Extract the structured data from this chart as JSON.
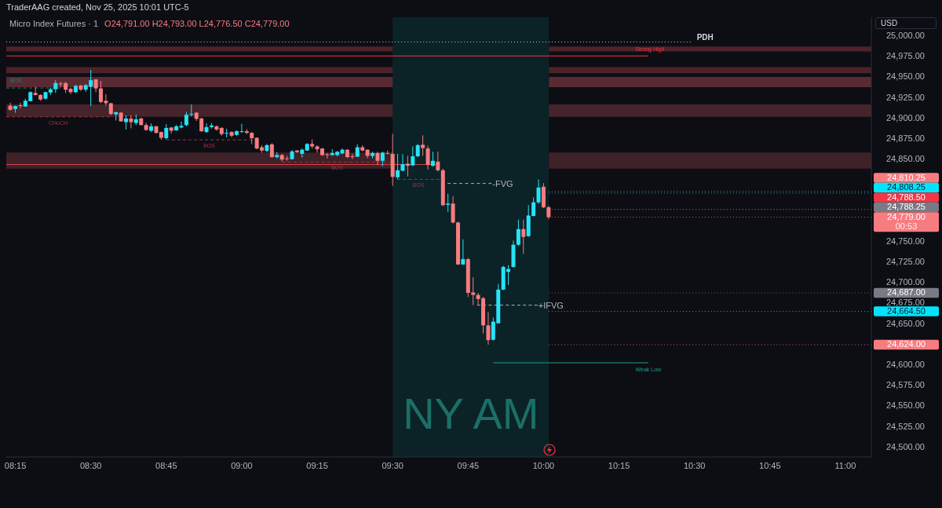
{
  "chart_data": {
    "type": "candlestick",
    "title": "Micro Index Futures · 1",
    "subtitle": "O24,791.00 H24,793.00 L24,776.50 C24,779.00",
    "annotations": [
      "TraderAAG created, Nov 25, 2025 10:01 UTC-5",
      "USD"
    ],
    "x": [
      8.2333,
      8.25,
      8.2667,
      8.2833,
      8.3,
      8.3167,
      8.3333,
      8.35,
      8.3667,
      8.3833,
      8.4,
      8.4167,
      8.4333,
      8.45,
      8.4667,
      8.4833,
      8.5,
      8.5167,
      8.5333,
      8.55,
      8.5667,
      8.5833,
      8.6,
      8.6167,
      8.6333,
      8.65,
      8.6667,
      8.6833,
      8.7,
      8.7167,
      8.7333,
      8.75,
      8.7667,
      8.7833,
      8.8,
      8.8167,
      8.8333,
      8.85,
      8.8667,
      8.8833,
      8.9,
      8.9167,
      8.9333,
      8.95,
      8.9667,
      8.9833,
      9,
      9.0167,
      9.0333,
      9.05,
      9.0667,
      9.0833,
      9.1,
      9.1167,
      9.1333,
      9.15,
      9.1667,
      9.1833,
      9.2,
      9.2167,
      9.2333,
      9.25,
      9.2667,
      9.2833,
      9.3,
      9.3167,
      9.3333,
      9.35,
      9.3667,
      9.3833,
      9.4,
      9.4167,
      9.4333,
      9.45,
      9.4667,
      9.4833,
      9.5,
      9.5167,
      9.5333,
      9.55,
      9.5667,
      9.5833,
      9.6,
      9.6167,
      9.6333,
      9.65,
      9.6667,
      9.6833,
      9.7,
      9.7167,
      9.7333,
      9.75,
      9.7667,
      9.7833,
      9.8,
      9.8167,
      9.8333,
      9.85,
      9.8667,
      9.8833,
      9.9,
      9.9167,
      9.9333,
      9.95,
      9.9667,
      9.9833,
      10,
      10.0167
    ],
    "ohlc": [
      [
        24914.5,
        24918,
        24908.5,
        24909.5
      ],
      [
        24910.5,
        24914.5,
        24906,
        24914
      ],
      [
        24915,
        24918,
        24911,
        24914.5
      ],
      [
        24913.5,
        24923,
        24913.5,
        24920.5
      ],
      [
        24920,
        24932,
        24919.5,
        24931
      ],
      [
        24930,
        24937.5,
        24927,
        24927.5
      ],
      [
        24927.5,
        24928.5,
        24920.5,
        24922
      ],
      [
        24923,
        24931.5,
        24922,
        24931
      ],
      [
        24930.5,
        24936.5,
        24927.5,
        24934.5
      ],
      [
        24934.5,
        24945.5,
        24930,
        24942
      ],
      [
        24941.5,
        24943.5,
        24937,
        24941
      ],
      [
        24942,
        24943.5,
        24930,
        24934
      ],
      [
        24935,
        24936.5,
        24928.5,
        24931
      ],
      [
        24931,
        24940,
        24930,
        24938.5
      ],
      [
        24939,
        24940,
        24932.5,
        24934
      ],
      [
        24934,
        24941,
        24931.5,
        24939.5
      ],
      [
        24937.5,
        24958,
        24914,
        24945.5
      ],
      [
        24946.5,
        24946.5,
        24931,
        24935.5
      ],
      [
        24935.5,
        24944.5,
        24917.5,
        24919
      ],
      [
        24920.5,
        24928.5,
        24914.5,
        24917.5
      ],
      [
        24917.5,
        24918,
        24903,
        24904.5
      ],
      [
        24904,
        24907.5,
        24896.5,
        24906.5
      ],
      [
        24906,
        24907,
        24895,
        24895.5
      ],
      [
        24894.5,
        24903,
        24885.5,
        24899
      ],
      [
        24899,
        24903,
        24887,
        24894.5
      ],
      [
        24893.5,
        24903.5,
        24891,
        24898
      ],
      [
        24899,
        24900,
        24890.5,
        24891
      ],
      [
        24891,
        24893.5,
        24884,
        24885
      ],
      [
        24884,
        24893,
        24882.5,
        24889.5
      ],
      [
        24889.5,
        24890,
        24880.5,
        24881.5
      ],
      [
        24882.5,
        24883,
        24873,
        24875.5
      ],
      [
        24875,
        24892,
        24873.5,
        24887.5
      ],
      [
        24888,
        24888.5,
        24880.5,
        24884
      ],
      [
        24884.5,
        24891,
        24884,
        24889.5
      ],
      [
        24888,
        24895,
        24887,
        24890
      ],
      [
        24891,
        24907,
        24889.5,
        24903.5
      ],
      [
        24904,
        24916,
        24901.5,
        24904.5
      ],
      [
        24906,
        24906.5,
        24896,
        24898.5
      ],
      [
        24899,
        24900,
        24882.5,
        24883.5
      ],
      [
        24882.5,
        24893,
        24881.5,
        24888.5
      ],
      [
        24888.5,
        24893.5,
        24886.5,
        24890.5
      ],
      [
        24889.5,
        24890.5,
        24884,
        24885.5
      ],
      [
        24887.5,
        24888.5,
        24878,
        24880
      ],
      [
        24881,
        24886.5,
        24876,
        24881.5
      ],
      [
        24882.5,
        24883.5,
        24876,
        24878
      ],
      [
        24879,
        24884.5,
        24878,
        24883.5
      ],
      [
        24883,
        24892.5,
        24881.5,
        24883.5
      ],
      [
        24883.5,
        24886,
        24880,
        24881.5
      ],
      [
        24881.5,
        24882.5,
        24868,
        24875
      ],
      [
        24875.5,
        24876,
        24861.5,
        24862.5
      ],
      [
        24864,
        24866.5,
        24857.5,
        24860
      ],
      [
        24859.5,
        24868,
        24858,
        24866.5
      ],
      [
        24867.5,
        24869,
        24851.5,
        24852
      ],
      [
        24852,
        24858,
        24850.5,
        24854.5
      ],
      [
        24854.5,
        24856,
        24846.5,
        24849
      ],
      [
        24850.5,
        24853.5,
        24847.5,
        24850
      ],
      [
        24849.5,
        24860.5,
        24849,
        24859
      ],
      [
        24860,
        24860.5,
        24857,
        24858
      ],
      [
        24856,
        24862.5,
        24851.5,
        24861
      ],
      [
        24860,
        24869,
        24859.5,
        24868
      ],
      [
        24868,
        24873.5,
        24862.5,
        24865
      ],
      [
        24865,
        24866.5,
        24857.5,
        24861.5
      ],
      [
        24862.5,
        24863,
        24853.5,
        24854.5
      ],
      [
        24855.5,
        24857,
        24850.5,
        24855
      ],
      [
        24854.5,
        24861.5,
        24853.5,
        24857
      ],
      [
        24854.5,
        24859.5,
        24853,
        24858.5
      ],
      [
        24856.5,
        24862.5,
        24855.5,
        24861
      ],
      [
        24861,
        24861.5,
        24851,
        24852
      ],
      [
        24853,
        24856,
        24849.5,
        24852.5
      ],
      [
        24852.5,
        24867.5,
        24852,
        24864
      ],
      [
        24864,
        24866.5,
        24859,
        24860
      ],
      [
        24861,
        24861.5,
        24850.5,
        24853.5
      ],
      [
        24853.5,
        24858.5,
        24850.5,
        24857
      ],
      [
        24857,
        24858.5,
        24842.5,
        24847.5
      ],
      [
        24847.5,
        24858.5,
        24841,
        24857.5
      ],
      [
        24857,
        24860,
        24855.5,
        24856.5
      ],
      [
        24856,
        24880.5,
        24817,
        24828
      ],
      [
        24827.5,
        24856,
        24825,
        24836
      ],
      [
        24835.5,
        24855.5,
        24834.5,
        24843.5
      ],
      [
        24844,
        24853.5,
        24828.5,
        24841.5
      ],
      [
        24842,
        24865,
        24841,
        24853
      ],
      [
        24853,
        24868,
        24852,
        24866.5
      ],
      [
        24867,
        24878.5,
        24853.5,
        24863
      ],
      [
        24862.5,
        24866,
        24837,
        24842.5
      ],
      [
        24841.5,
        24858.5,
        24840.5,
        24847.5
      ],
      [
        24846.5,
        24858.5,
        24834.5,
        24836
      ],
      [
        24836,
        24838,
        24792.5,
        24793.5
      ],
      [
        24794,
        24807.5,
        24785.5,
        24795.5
      ],
      [
        24795.5,
        24804.5,
        24771.5,
        24772.5
      ],
      [
        24772.5,
        24773.5,
        24721,
        24721.5
      ],
      [
        24721.5,
        24752,
        24721,
        24728
      ],
      [
        24728,
        24729.5,
        24682,
        24687
      ],
      [
        24687.5,
        24706,
        24672,
        24684.5
      ],
      [
        24684.5,
        24687,
        24672,
        24679.5
      ],
      [
        24680.5,
        24682,
        24637.5,
        24647.5
      ],
      [
        24647.5,
        24663.5,
        24624,
        24629.5
      ],
      [
        24630,
        24657,
        24629,
        24652
      ],
      [
        24650,
        24698,
        24649.5,
        24691
      ],
      [
        24691,
        24720,
        24690,
        24718.5
      ],
      [
        24712.5,
        24720.5,
        24696.5,
        24716
      ],
      [
        24718.5,
        24750.5,
        24717.5,
        24745.5
      ],
      [
        24745.5,
        24776,
        24744,
        24764.5
      ],
      [
        24764.5,
        24776,
        24734.5,
        24755
      ],
      [
        24756,
        24793.5,
        24755,
        24781
      ],
      [
        24780.5,
        24803,
        24780,
        24797
      ],
      [
        24797,
        24825,
        24795,
        24815
      ],
      [
        24816,
        24820.5,
        24790,
        24791
      ],
      [
        24791,
        24793,
        24776.5,
        24779
      ]
    ],
    "colors": [
      "#f77c80",
      "#26e3f5",
      "#f77c80",
      "#26e3f5",
      "#26e3f5",
      "#f77c80",
      "#f77c80",
      "#26e3f5",
      "#26e3f5",
      "#26e3f5",
      "#f77c80",
      "#f77c80",
      "#f77c80",
      "#26e3f5",
      "#f77c80",
      "#26e3f5",
      "#26e3f5",
      "#f77c80",
      "#f77c80",
      "#f77c80",
      "#f77c80",
      "#26e3f5",
      "#f77c80",
      "#26e3f5",
      "#f77c80",
      "#26e3f5",
      "#f77c80",
      "#f77c80",
      "#26e3f5",
      "#f77c80",
      "#f77c80",
      "#26e3f5",
      "#f77c80",
      "#26e3f5",
      "#26e3f5",
      "#26e3f5",
      "#26e3f5",
      "#f77c80",
      "#f77c80",
      "#26e3f5",
      "#26e3f5",
      "#f77c80",
      "#f77c80",
      "#26e3f5",
      "#f77c80",
      "#26e3f5",
      "#26e3f5",
      "#f77c80",
      "#f77c80",
      "#f77c80",
      "#f77c80",
      "#26e3f5",
      "#f77c80",
      "#26e3f5",
      "#f77c80",
      "#f77c80",
      "#26e3f5",
      "#f77c80",
      "#26e3f5",
      "#26e3f5",
      "#f77c80",
      "#f77c80",
      "#f77c80",
      "#f77c80",
      "#26e3f5",
      "#26e3f5",
      "#26e3f5",
      "#f77c80",
      "#f77c80",
      "#26e3f5",
      "#f77c80",
      "#f77c80",
      "#26e3f5",
      "#f77c80",
      "#26e3f5",
      "#f77c80",
      "#f77c80",
      "#26e3f5",
      "#26e3f5",
      "#f77c80",
      "#26e3f5",
      "#26e3f5",
      "#f77c80",
      "#f77c80",
      "#26e3f5",
      "#f77c80",
      "#f77c80",
      "#26e3f5",
      "#f77c80",
      "#f77c80",
      "#26e3f5",
      "#f77c80",
      "#f77c80",
      "#f77c80",
      "#f77c80",
      "#f77c80",
      "#26e3f5",
      "#26e3f5",
      "#26e3f5",
      "#26e3f5",
      "#26e3f5",
      "#26e3f5",
      "#f77c80",
      "#26e3f5",
      "#26e3f5",
      "#26e3f5",
      "#f77c80",
      "#f77c80"
    ],
    "series": [
      {
        "type": "line",
        "name": "PDH",
        "color": "#d1d4dc",
        "line_style": "dotted",
        "x": [
          8.22,
          10.487
        ],
        "values": [
          24992,
          24992
        ]
      },
      {
        "type": "line",
        "name": "Strong High",
        "color": "#f23645",
        "line_style": "solid",
        "x": [
          8.22,
          10.347
        ],
        "values": [
          24975,
          24975
        ]
      },
      {
        "type": "line",
        "color": "#d9434f",
        "line_style": "solid",
        "x": [
          8.22,
          9.655
        ],
        "values": [
          24843,
          24843
        ]
      },
      {
        "type": "line",
        "name": "BOS",
        "color": "#1e7f77",
        "line_style": "dashed",
        "x": [
          8.22,
          8.4
        ],
        "values": [
          24936,
          24936
        ]
      },
      {
        "type": "line",
        "name": "CHoCH",
        "color": "#a3323d",
        "line_style": "dashed",
        "x": [
          8.22,
          8.563
        ],
        "values": [
          24901,
          24901
        ]
      },
      {
        "type": "line",
        "name": "BOS",
        "color": "#a3323d",
        "line_style": "dashed",
        "x": [
          8.75,
          9.035
        ],
        "values": [
          24873,
          24873
        ]
      },
      {
        "type": "line",
        "name": "BOS",
        "color": "#a3323d",
        "line_style": "dashed",
        "x": [
          9.135,
          9.498
        ],
        "values": [
          24846,
          24846
        ]
      },
      {
        "type": "line",
        "name": "BOS",
        "color": "#a3323d",
        "line_style": "dashed",
        "x": [
          9.516,
          9.655
        ],
        "values": [
          24825,
          24825
        ]
      },
      {
        "type": "line",
        "name": "-FVG",
        "color": "#b2b5be",
        "line_style": "dashed",
        "x": [
          9.682,
          9.828
        ],
        "values": [
          24820,
          24820
        ]
      },
      {
        "type": "line",
        "name": "+IFVG",
        "color": "#b2b5be",
        "line_style": "dashed",
        "x": [
          9.78,
          9.98
        ],
        "values": [
          24672,
          24672
        ]
      },
      {
        "type": "line",
        "name": "Weak Low",
        "color": "#1e9e8f",
        "line_style": "solid",
        "x": [
          9.833,
          10.347
        ],
        "values": [
          24602,
          24602
        ]
      }
    ],
    "bands": [
      {
        "axis": "y",
        "from": 24980.5,
        "to": 24986.5,
        "color": "#4d2229"
      },
      {
        "axis": "y",
        "from": 24954,
        "to": 24961.5,
        "color": "#4d2229"
      },
      {
        "axis": "y",
        "from": 24937,
        "to": 24949.5,
        "color": "#5a2a32"
      },
      {
        "axis": "y",
        "from": 24901,
        "to": 24916,
        "color": "#45242b"
      },
      {
        "axis": "y",
        "from": 24838,
        "to": 24857.5,
        "color": "#3f2128"
      },
      {
        "axis": "x",
        "from": 9.5,
        "to": 10.018,
        "label": "NY AM",
        "color": "#0b2226"
      }
    ],
    "ref_lines": [
      {
        "axis": "y",
        "value": 24810.25,
        "label": "24,810.25",
        "color": "#f77c80",
        "line_style": "dotted"
      },
      {
        "axis": "y",
        "value": 24808.25,
        "label": "24,808.25",
        "color": "#00e5ff",
        "line_style": "dotted"
      },
      {
        "axis": "y",
        "value": 24788.5,
        "label": "24,788.50",
        "color": "#f23645",
        "line_style": "dotted"
      },
      {
        "axis": "y",
        "value": 24788.25,
        "label": "24,788.25",
        "color": "#787b86",
        "line_style": "dotted"
      },
      {
        "axis": "y",
        "value": 24779,
        "label": "24,779.00\n00:53",
        "color": "#f77c80",
        "line_style": "dotted"
      },
      {
        "axis": "y",
        "value": 24687,
        "label": "24,687.00",
        "color": "#787b86",
        "line_style": "dotted"
      },
      {
        "axis": "y",
        "value": 24664.5,
        "label": "24,664.50",
        "color": "#00e5ff",
        "line_style": "dotted"
      },
      {
        "axis": "y",
        "value": 24624,
        "label": "24,624.00",
        "color": "#f77c80",
        "line_style": "dotted"
      }
    ],
    "xlim": [
      8.22,
      11.086
    ],
    "xticks": [
      {
        "value": 8.25,
        "label": "08:15"
      },
      {
        "value": 8.5,
        "label": "08:30"
      },
      {
        "value": 8.75,
        "label": "08:45"
      },
      {
        "value": 9,
        "label": "09:00"
      },
      {
        "value": 9.25,
        "label": "09:15"
      },
      {
        "value": 9.5,
        "label": "09:30"
      },
      {
        "value": 9.75,
        "label": "09:45"
      },
      {
        "value": 10,
        "label": "10:00"
      },
      {
        "value": 10.25,
        "label": "10:15"
      },
      {
        "value": 10.5,
        "label": "10:30"
      },
      {
        "value": 10.75,
        "label": "10:45"
      },
      {
        "value": 11,
        "label": "11:00"
      }
    ],
    "ylim": [
      24487.5,
      25022
    ],
    "yticks": [
      {
        "value": 25000,
        "label": "25,000.00"
      },
      {
        "value": 24975,
        "label": "24,975.00"
      },
      {
        "value": 24950,
        "label": "24,950.00"
      },
      {
        "value": 24925,
        "label": "24,925.00"
      },
      {
        "value": 24900,
        "label": "24,900.00"
      },
      {
        "value": 24875,
        "label": "24,875.00"
      },
      {
        "value": 24850,
        "label": "24,850.00"
      },
      {
        "value": 24750,
        "label": "24,750.00"
      },
      {
        "value": 24725,
        "label": "24,725.00"
      },
      {
        "value": 24700,
        "label": "24,700.00"
      },
      {
        "value": 24675,
        "label": "24,675.00"
      },
      {
        "value": 24650,
        "label": "24,650.00"
      },
      {
        "value": 24600,
        "label": "24,600.00"
      },
      {
        "value": 24575,
        "label": "24,575.00"
      },
      {
        "value": 24550,
        "label": "24,550.00"
      },
      {
        "value": 24525,
        "label": "24,525.00"
      },
      {
        "value": 24500,
        "label": "24,500.00"
      }
    ]
  }
}
